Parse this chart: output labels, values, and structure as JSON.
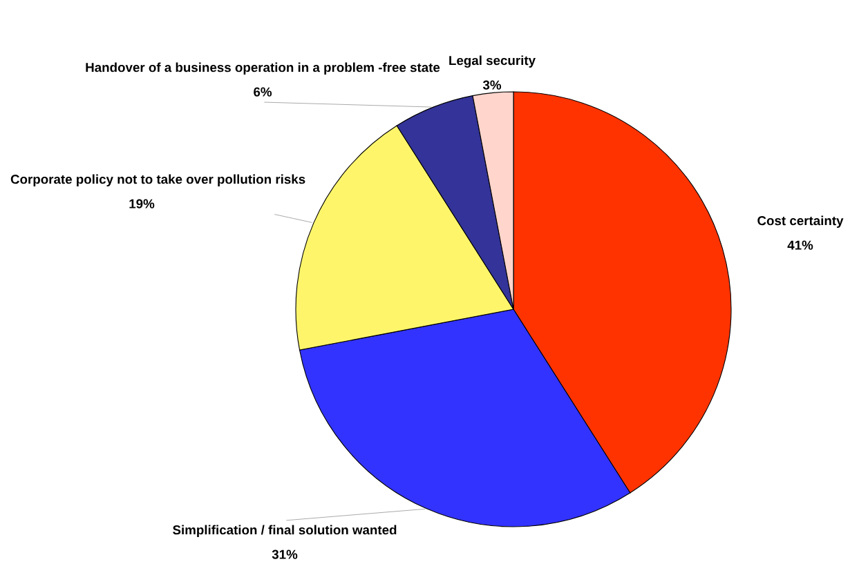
{
  "chart_data": {
    "type": "pie",
    "categories": [
      "Cost certainty",
      "Simplification / final solution wanted",
      "Corporate policy not to take over pollution risks",
      "Handover of a business operation in a problem -free state",
      "Legal security"
    ],
    "values": [
      41,
      31,
      19,
      6,
      3
    ],
    "value_labels": [
      "41%",
      "31%",
      "19%",
      "6%",
      "3%"
    ],
    "colors": [
      "#ff3300",
      "#3333ff",
      "#fff56b",
      "#333399",
      "#ffd5cc"
    ]
  }
}
